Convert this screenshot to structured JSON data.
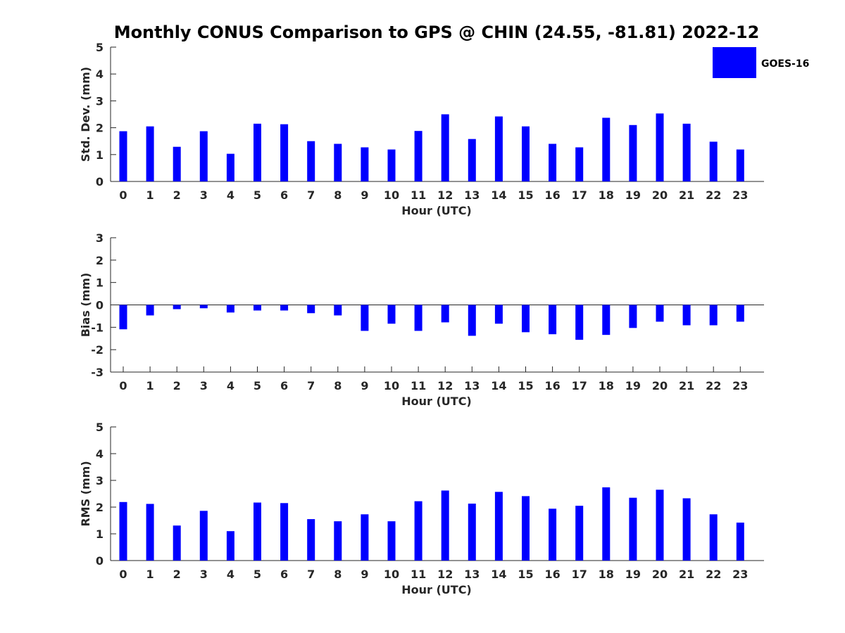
{
  "title": "Monthly CONUS Comparison to GPS @ CHIN (24.55, -81.81) 2022-12",
  "legend": {
    "label": "GOES-16",
    "color": "#0000ff",
    "placement": "top-right"
  },
  "chart_data": [
    {
      "type": "bar",
      "name": "std-dev",
      "xlabel": "Hour (UTC)",
      "ylabel": "Std. Dev. (mm)",
      "ylim": [
        0,
        5
      ],
      "yticks": [
        0,
        1,
        2,
        3,
        4,
        5
      ],
      "categories": [
        "0",
        "1",
        "2",
        "3",
        "4",
        "5",
        "6",
        "7",
        "8",
        "9",
        "10",
        "11",
        "12",
        "13",
        "14",
        "15",
        "16",
        "17",
        "18",
        "19",
        "20",
        "21",
        "22",
        "23"
      ],
      "series": [
        {
          "name": "GOES-16",
          "color": "#0000ff",
          "values": [
            1.87,
            2.05,
            1.29,
            1.87,
            1.03,
            2.15,
            2.13,
            1.5,
            1.4,
            1.27,
            1.19,
            1.88,
            2.5,
            1.58,
            2.42,
            2.05,
            1.4,
            1.27,
            2.37,
            2.1,
            2.53,
            2.15,
            1.48,
            1.19
          ]
        }
      ]
    },
    {
      "type": "bar",
      "name": "bias",
      "xlabel": "Hour (UTC)",
      "ylabel": "Bias (mm)",
      "ylim": [
        -3,
        3
      ],
      "yticks": [
        -3,
        -2,
        -1,
        0,
        1,
        2,
        3
      ],
      "categories": [
        "0",
        "1",
        "2",
        "3",
        "4",
        "5",
        "6",
        "7",
        "8",
        "9",
        "10",
        "11",
        "12",
        "13",
        "14",
        "15",
        "16",
        "17",
        "18",
        "19",
        "20",
        "21",
        "22",
        "23"
      ],
      "series": [
        {
          "name": "GOES-16",
          "color": "#0000ff",
          "values": [
            -1.09,
            -0.47,
            -0.19,
            -0.15,
            -0.34,
            -0.25,
            -0.25,
            -0.37,
            -0.47,
            -1.16,
            -0.84,
            -1.16,
            -0.78,
            -1.38,
            -0.84,
            -1.22,
            -1.31,
            -1.56,
            -1.34,
            -1.03,
            -0.75,
            -0.91,
            -0.91,
            -0.75
          ]
        }
      ]
    },
    {
      "type": "bar",
      "name": "rms",
      "xlabel": "Hour (UTC)",
      "ylabel": "RMS (mm)",
      "ylim": [
        0,
        5
      ],
      "yticks": [
        0,
        1,
        2,
        3,
        4,
        5
      ],
      "categories": [
        "0",
        "1",
        "2",
        "3",
        "4",
        "5",
        "6",
        "7",
        "8",
        "9",
        "10",
        "11",
        "12",
        "13",
        "14",
        "15",
        "16",
        "17",
        "18",
        "19",
        "20",
        "21",
        "22",
        "23"
      ],
      "series": [
        {
          "name": "GOES-16",
          "color": "#0000ff",
          "values": [
            2.19,
            2.12,
            1.31,
            1.86,
            1.1,
            2.17,
            2.15,
            1.55,
            1.47,
            1.73,
            1.47,
            2.22,
            2.62,
            2.13,
            2.57,
            2.41,
            1.94,
            2.05,
            2.74,
            2.35,
            2.65,
            2.33,
            1.73,
            1.42
          ]
        }
      ]
    }
  ]
}
